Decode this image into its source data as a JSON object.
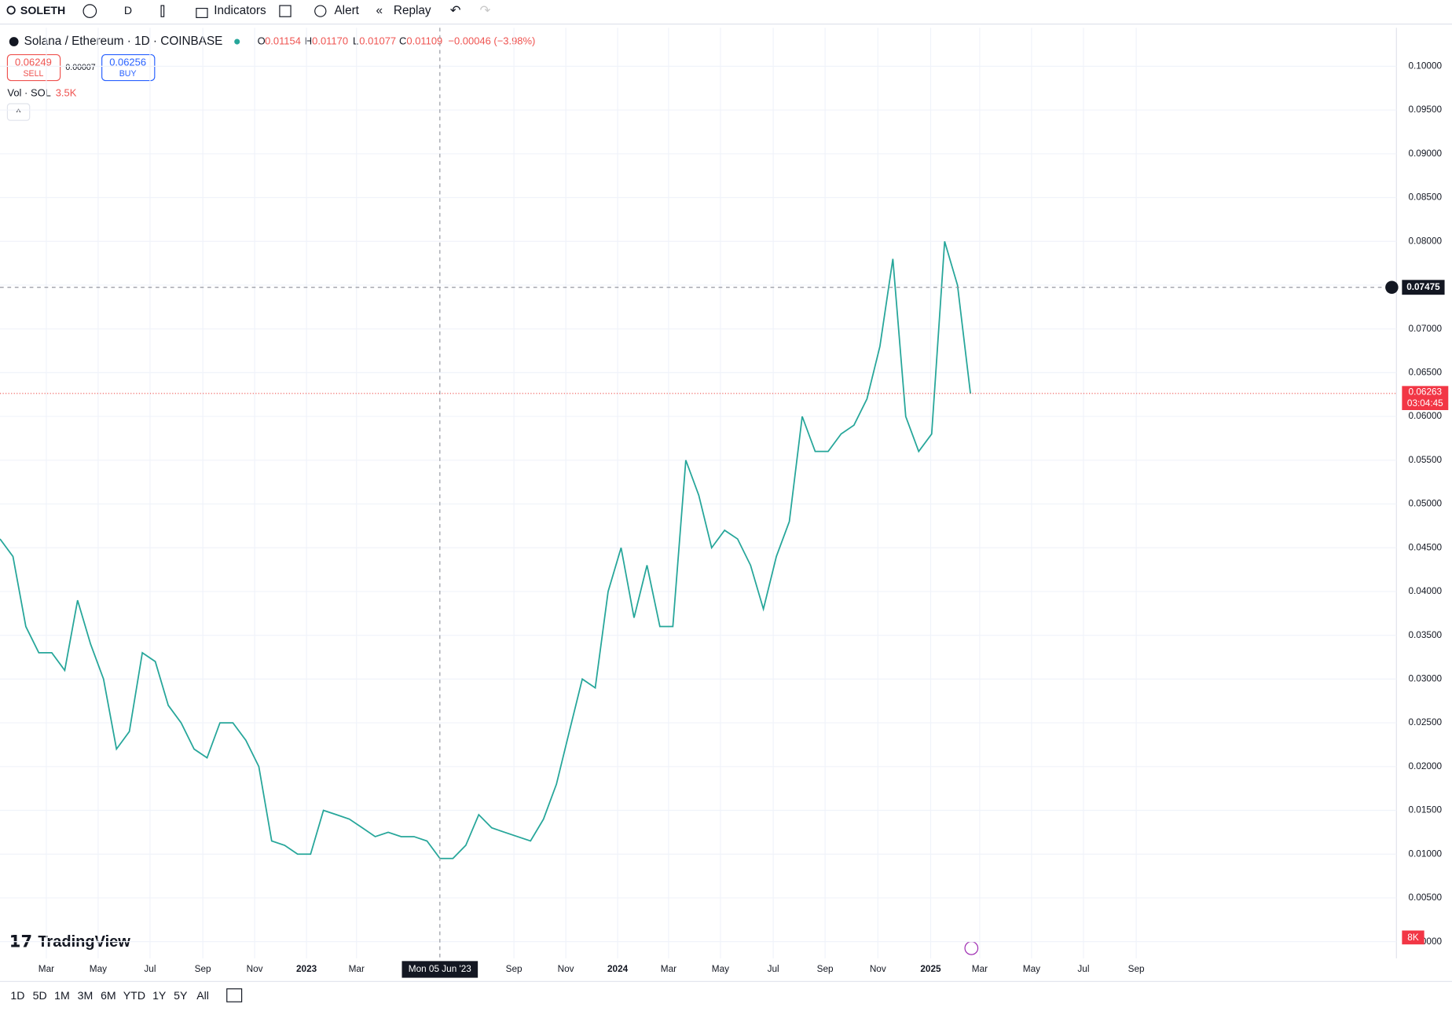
{
  "toolbar": {
    "symbol": "SOLETH",
    "interval": "D",
    "indicators": "Indicators",
    "alert": "Alert",
    "replay": "Replay"
  },
  "legend": {
    "title": "Solana / Ethereum · 1D · COINBASE",
    "open_label": "O",
    "open": "0.01154",
    "high_label": "H",
    "high": "0.01170",
    "low_label": "L",
    "low": "0.01077",
    "close_label": "C",
    "close": "0.01109",
    "change": "−0.00046 (−3.98%)"
  },
  "trade": {
    "sell_price": "0.06249",
    "sell": "SELL",
    "spread": "0.00007",
    "buy_price": "0.06256",
    "buy": "BUY"
  },
  "volume_legend": {
    "label": "Vol · SOL",
    "value": "3.5K"
  },
  "chart_data": {
    "type": "line",
    "color": "#26a69a",
    "values": [
      0.046,
      0.044,
      0.036,
      0.033,
      0.033,
      0.031,
      0.039,
      0.034,
      0.03,
      0.022,
      0.024,
      0.033,
      0.032,
      0.027,
      0.025,
      0.022,
      0.021,
      0.025,
      0.025,
      0.023,
      0.02,
      0.0115,
      0.011,
      0.01,
      0.01,
      0.015,
      0.0145,
      0.014,
      0.013,
      0.012,
      0.0125,
      0.012,
      0.012,
      0.0115,
      0.0095,
      0.0095,
      0.011,
      0.0145,
      0.013,
      0.0125,
      0.012,
      0.0115,
      0.014,
      0.018,
      0.024,
      0.03,
      0.029,
      0.04,
      0.045,
      0.037,
      0.043,
      0.036,
      0.036,
      0.055,
      0.051,
      0.045,
      0.047,
      0.046,
      0.043,
      0.038,
      0.044,
      0.048,
      0.06,
      0.056,
      0.056,
      0.058,
      0.059,
      0.062,
      0.068,
      0.078,
      0.06,
      0.056,
      0.058,
      0.08,
      0.075,
      0.0626
    ],
    "ylim": [
      -0.0019,
      0.1044
    ],
    "yticks": [
      {
        "value": 0,
        "label": "0.00000"
      },
      {
        "value": 0.005,
        "label": "0.00500"
      },
      {
        "value": 0.01,
        "label": "0.01000"
      },
      {
        "value": 0.015,
        "label": "0.01500"
      },
      {
        "value": 0.02,
        "label": "0.02000"
      },
      {
        "value": 0.025,
        "label": "0.02500"
      },
      {
        "value": 0.03,
        "label": "0.03000"
      },
      {
        "value": 0.035,
        "label": "0.03500"
      },
      {
        "value": 0.04,
        "label": "0.04000"
      },
      {
        "value": 0.045,
        "label": "0.04500"
      },
      {
        "value": 0.05,
        "label": "0.05000"
      },
      {
        "value": 0.055,
        "label": "0.05500"
      },
      {
        "value": 0.06,
        "label": "0.06000"
      },
      {
        "value": 0.065,
        "label": "0.06500"
      },
      {
        "value": 0.07,
        "label": "0.07000"
      },
      {
        "value": 0.075,
        "label": "0.07500"
      },
      {
        "value": 0.08,
        "label": "0.08000"
      },
      {
        "value": 0.085,
        "label": "0.08500"
      },
      {
        "value": 0.09,
        "label": "0.09000"
      },
      {
        "value": 0.095,
        "label": "0.09500"
      },
      {
        "value": 0.1,
        "label": "0.10000"
      }
    ],
    "x_labels": [
      "Mar",
      "May",
      "Jul",
      "Sep",
      "Nov",
      "2023",
      "Mar",
      "Sep",
      "Nov",
      "2024",
      "Mar",
      "May",
      "Jul",
      "Sep",
      "Nov",
      "2025",
      "Mar",
      "May",
      "Jul",
      "Sep"
    ],
    "grid": true,
    "crosshair_date": "Mon 05 Jun '23",
    "crosshair_price": 0.07475,
    "last_price": 0.06263,
    "countdown": "03:04:45",
    "volume_scale_label": "8K"
  },
  "logo": "TradingView",
  "ranges": [
    "1D",
    "5D",
    "1M",
    "3M",
    "6M",
    "YTD",
    "1Y",
    "5Y",
    "All"
  ]
}
